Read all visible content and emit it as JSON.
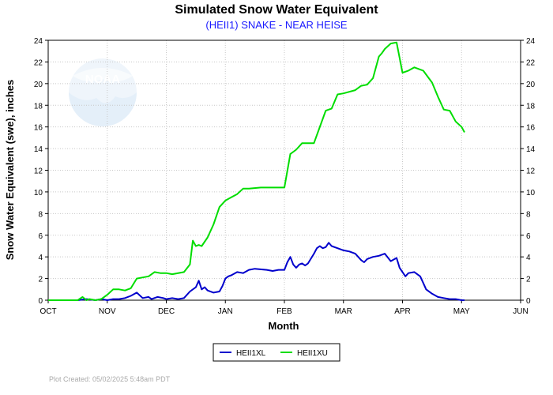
{
  "chart_data": {
    "type": "line",
    "title": "Simulated Snow Water Equivalent",
    "subtitle": "(HEII1) SNAKE - NEAR HEISE",
    "xlabel": "Month",
    "ylabel": "Snow Water Equivalent (swe),  inches",
    "x_tick_labels": [
      "OCT",
      "NOV",
      "DEC",
      "JAN",
      "FEB",
      "MAR",
      "APR",
      "MAY",
      "JUN"
    ],
    "xlim": [
      "OCT",
      "JUN"
    ],
    "y_ticks": [
      0,
      2,
      4,
      6,
      8,
      10,
      12,
      14,
      16,
      18,
      20,
      22,
      24
    ],
    "ylim": [
      0,
      24
    ],
    "grid": true,
    "legend_placement": "bottom-center",
    "footer": "Plot Created:  05/02/2025 5:48am PDT",
    "logo_text": "NOAA",
    "series": [
      {
        "name": "HEII1XL",
        "color": "#0000cc",
        "x": [
          0,
          0.5,
          0.65,
          0.8,
          0.9,
          1.0,
          1.1,
          1.2,
          1.3,
          1.4,
          1.5,
          1.6,
          1.7,
          1.75,
          1.85,
          1.95,
          2.0,
          2.1,
          2.2,
          2.3,
          2.4,
          2.5,
          2.55,
          2.6,
          2.65,
          2.7,
          2.8,
          2.9,
          2.95,
          3.0,
          3.05,
          3.1,
          3.2,
          3.3,
          3.4,
          3.5,
          3.7,
          3.8,
          3.9,
          4.0,
          4.05,
          4.1,
          4.15,
          4.2,
          4.25,
          4.3,
          4.35,
          4.4,
          4.5,
          4.55,
          4.6,
          4.65,
          4.7,
          4.75,
          4.8,
          4.9,
          5.0,
          5.1,
          5.2,
          5.3,
          5.35,
          5.4,
          5.5,
          5.6,
          5.7,
          5.8,
          5.9,
          5.95,
          6.0,
          6.05,
          6.1,
          6.2,
          6.3,
          6.35,
          6.4,
          6.5,
          6.6,
          6.7,
          6.8,
          6.9,
          7.0,
          7.05
        ],
        "values": [
          0,
          0,
          0.1,
          0,
          0.1,
          0,
          0.1,
          0.1,
          0.2,
          0.4,
          0.7,
          0.2,
          0.3,
          0.1,
          0.3,
          0.2,
          0.1,
          0.2,
          0.1,
          0.2,
          0.8,
          1.2,
          1.8,
          1.0,
          1.2,
          0.9,
          0.7,
          0.8,
          1.3,
          2.0,
          2.2,
          2.3,
          2.6,
          2.5,
          2.8,
          2.9,
          2.8,
          2.7,
          2.8,
          2.8,
          3.5,
          4.0,
          3.3,
          3.0,
          3.3,
          3.4,
          3.2,
          3.4,
          4.3,
          4.8,
          5.0,
          4.8,
          4.9,
          5.3,
          5.0,
          4.8,
          4.6,
          4.5,
          4.3,
          3.7,
          3.5,
          3.8,
          4.0,
          4.1,
          4.3,
          3.6,
          3.9,
          3.0,
          2.6,
          2.2,
          2.5,
          2.6,
          2.2,
          1.6,
          1.0,
          0.6,
          0.3,
          0.2,
          0.1,
          0.1,
          0,
          0
        ]
      },
      {
        "name": "HEII1XU",
        "color": "#00dd00",
        "x": [
          0,
          0.5,
          0.58,
          0.65,
          0.7,
          0.8,
          0.9,
          1.0,
          1.1,
          1.2,
          1.3,
          1.4,
          1.5,
          1.6,
          1.7,
          1.8,
          1.9,
          2.0,
          2.1,
          2.3,
          2.4,
          2.45,
          2.5,
          2.55,
          2.6,
          2.7,
          2.8,
          2.9,
          3.0,
          3.1,
          3.2,
          3.3,
          3.4,
          3.6,
          3.8,
          4.0,
          4.1,
          4.2,
          4.3,
          4.5,
          4.7,
          4.8,
          4.9,
          5.0,
          5.2,
          5.3,
          5.4,
          5.5,
          5.6,
          5.65,
          5.7,
          5.8,
          5.9,
          6.0,
          6.1,
          6.2,
          6.35,
          6.5,
          6.6,
          6.7,
          6.8,
          6.9,
          7.0,
          7.05
        ],
        "values": [
          0,
          0,
          0.3,
          0,
          0.1,
          0,
          0.1,
          0.5,
          1.0,
          1.0,
          0.9,
          1.1,
          2.0,
          2.1,
          2.2,
          2.6,
          2.5,
          2.5,
          2.4,
          2.6,
          3.3,
          5.5,
          5.0,
          5.1,
          5.0,
          5.8,
          7.0,
          8.6,
          9.2,
          9.5,
          9.8,
          10.3,
          10.3,
          10.4,
          10.4,
          10.4,
          13.5,
          13.9,
          14.5,
          14.5,
          17.5,
          17.7,
          19.0,
          19.1,
          19.4,
          19.8,
          19.9,
          20.5,
          22.5,
          22.8,
          23.2,
          23.7,
          23.8,
          21.0,
          21.2,
          21.5,
          21.2,
          20.1,
          18.8,
          17.6,
          17.5,
          16.5,
          16.0,
          15.5
        ]
      }
    ]
  }
}
